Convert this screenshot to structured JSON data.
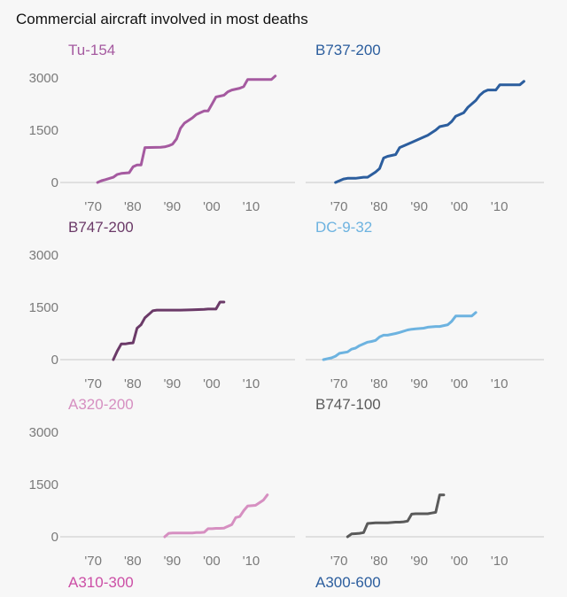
{
  "title": "Commercial aircraft involved in most deaths",
  "chart_data": {
    "type": "line",
    "xlim": [
      1963,
      2022
    ],
    "ylim": [
      0,
      3300
    ],
    "yticks": [
      0,
      1500,
      3000
    ],
    "xticks": [
      1970,
      1980,
      1990,
      2000,
      2010
    ],
    "xticklabels": [
      "'70",
      "'80",
      "'90",
      "'00",
      "'10"
    ],
    "panels": [
      {
        "name": "Tu-154",
        "color": "#a55aa0",
        "x": [
          1972,
          1973,
          1974,
          1976,
          1977,
          1978,
          1980,
          1981,
          1982,
          1983,
          1984,
          1988,
          1989,
          1990,
          1991,
          1992,
          1993,
          1994,
          1996,
          1997,
          1998,
          1999,
          2000,
          2001,
          2002,
          2004,
          2005,
          2006,
          2008,
          2009,
          2010,
          2016,
          2017
        ],
        "y": [
          0,
          50,
          80,
          150,
          230,
          260,
          280,
          450,
          500,
          500,
          1000,
          1010,
          1020,
          1050,
          1100,
          1250,
          1550,
          1700,
          1850,
          1950,
          2000,
          2050,
          2050,
          2250,
          2450,
          2500,
          2600,
          2650,
          2700,
          2750,
          2950,
          2950,
          3050
        ]
      },
      {
        "name": "B737-200",
        "color": "#2c5e9e",
        "x": [
          1970,
          1972,
          1973,
          1975,
          1977,
          1978,
          1980,
          1981,
          1982,
          1983,
          1985,
          1986,
          1988,
          1989,
          1990,
          1991,
          1992,
          1993,
          1995,
          1996,
          1998,
          1999,
          2000,
          2001,
          2002,
          2003,
          2005,
          2006,
          2007,
          2008,
          2010,
          2011,
          2016,
          2017
        ],
        "y": [
          0,
          100,
          120,
          120,
          150,
          150,
          300,
          400,
          700,
          750,
          800,
          1000,
          1100,
          1150,
          1200,
          1250,
          1300,
          1350,
          1500,
          1600,
          1650,
          1750,
          1900,
          1950,
          2000,
          2150,
          2350,
          2500,
          2600,
          2650,
          2650,
          2800,
          2800,
          2900
        ]
      },
      {
        "name": "B747-200",
        "color": "#6b3a68",
        "x": [
          1976,
          1977,
          1978,
          1979,
          1980,
          1981,
          1982,
          1983,
          1984,
          1985,
          1986,
          1987,
          1988,
          1989,
          1990,
          1993,
          1996,
          1999,
          2000,
          2002,
          2003,
          2004
        ],
        "y": [
          0,
          250,
          450,
          450,
          470,
          480,
          900,
          1000,
          1200,
          1300,
          1400,
          1420,
          1420,
          1420,
          1420,
          1420,
          1430,
          1440,
          1450,
          1450,
          1650,
          1650
        ]
      },
      {
        "name": "DC-9-32",
        "color": "#6db3e0",
        "x": [
          1967,
          1969,
          1970,
          1971,
          1973,
          1974,
          1975,
          1976,
          1978,
          1979,
          1980,
          1981,
          1982,
          1983,
          1985,
          1986,
          1988,
          1989,
          1990,
          1992,
          1993,
          1995,
          1996,
          1998,
          1999,
          2000,
          2002,
          2004,
          2005
        ],
        "y": [
          0,
          50,
          100,
          180,
          220,
          300,
          330,
          400,
          500,
          520,
          550,
          650,
          700,
          700,
          750,
          780,
          850,
          870,
          880,
          900,
          930,
          950,
          950,
          1000,
          1100,
          1250,
          1250,
          1250,
          1350
        ]
      },
      {
        "name": "A320-200",
        "color": "#d68fc1",
        "x": [
          1989,
          1990,
          1991,
          1992,
          1993,
          1994,
          1995,
          1996,
          1997,
          1998,
          1999,
          2000,
          2001,
          2002,
          2003,
          2004,
          2005,
          2006,
          2007,
          2008,
          2009,
          2010,
          2012,
          2014,
          2015
        ],
        "y": [
          0,
          100,
          110,
          110,
          110,
          110,
          110,
          110,
          120,
          120,
          130,
          230,
          230,
          240,
          240,
          250,
          300,
          350,
          550,
          580,
          750,
          880,
          900,
          1050,
          1200
        ]
      },
      {
        "name": "B747-100",
        "color": "#5a5a5a",
        "x": [
          1973,
          1974,
          1975,
          1976,
          1977,
          1978,
          1980,
          1983,
          1985,
          1986,
          1987,
          1988,
          1989,
          1990,
          1993,
          1994,
          1995,
          1996,
          1997
        ],
        "y": [
          0,
          80,
          90,
          100,
          120,
          380,
          400,
          400,
          420,
          420,
          430,
          450,
          650,
          660,
          660,
          680,
          700,
          1200,
          1200
        ]
      }
    ],
    "footer_labels": [
      "A310-300",
      "A300-600"
    ],
    "footer_colors": [
      "#cc4fa6",
      "#2c5e9e"
    ]
  }
}
